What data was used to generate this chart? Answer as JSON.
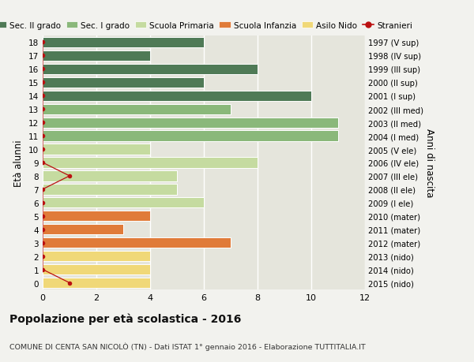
{
  "ages": [
    18,
    17,
    16,
    15,
    14,
    13,
    12,
    11,
    10,
    9,
    8,
    7,
    6,
    5,
    4,
    3,
    2,
    1,
    0
  ],
  "right_labels": [
    "1997 (V sup)",
    "1998 (IV sup)",
    "1999 (III sup)",
    "2000 (II sup)",
    "2001 (I sup)",
    "2002 (III med)",
    "2003 (II med)",
    "2004 (I med)",
    "2005 (V ele)",
    "2006 (IV ele)",
    "2007 (III ele)",
    "2008 (II ele)",
    "2009 (I ele)",
    "2010 (mater)",
    "2011 (mater)",
    "2012 (mater)",
    "2013 (nido)",
    "2014 (nido)",
    "2015 (nido)"
  ],
  "bar_values": [
    6,
    4,
    8,
    6,
    10,
    7,
    11,
    11,
    4,
    8,
    5,
    5,
    6,
    4,
    3,
    7,
    4,
    4,
    4
  ],
  "bar_colors": [
    "#4f7a56",
    "#4f7a56",
    "#4f7a56",
    "#4f7a56",
    "#4f7a56",
    "#8ab87a",
    "#8ab87a",
    "#8ab87a",
    "#c5dba0",
    "#c5dba0",
    "#c5dba0",
    "#c5dba0",
    "#c5dba0",
    "#e07b39",
    "#e07b39",
    "#e07b39",
    "#f0d878",
    "#f0d878",
    "#f0d878"
  ],
  "stranieri_x": [
    0,
    0,
    0,
    0,
    0,
    0,
    0,
    0,
    0,
    0,
    1,
    0,
    0,
    0,
    0,
    0,
    0,
    0,
    1
  ],
  "legend_labels": [
    "Sec. II grado",
    "Sec. I grado",
    "Scuola Primaria",
    "Scuola Infanzia",
    "Asilo Nido",
    "Stranieri"
  ],
  "legend_colors": [
    "#4f7a56",
    "#8ab87a",
    "#c5dba0",
    "#e07b39",
    "#f0d878",
    "#bb1111"
  ],
  "title": "Popolazione per età scolastica - 2016",
  "subtitle": "COMUNE DI CENTA SAN NICOLÒ (TN) - Dati ISTAT 1° gennaio 2016 - Elaborazione TUTTITALIA.IT",
  "ylabel": "Età alunni",
  "right_ylabel": "Anni di nascita",
  "xlim": [
    0,
    12
  ],
  "background_color": "#f2f2ee",
  "bar_background": "#e5e5dc",
  "grid_color": "#ffffff"
}
